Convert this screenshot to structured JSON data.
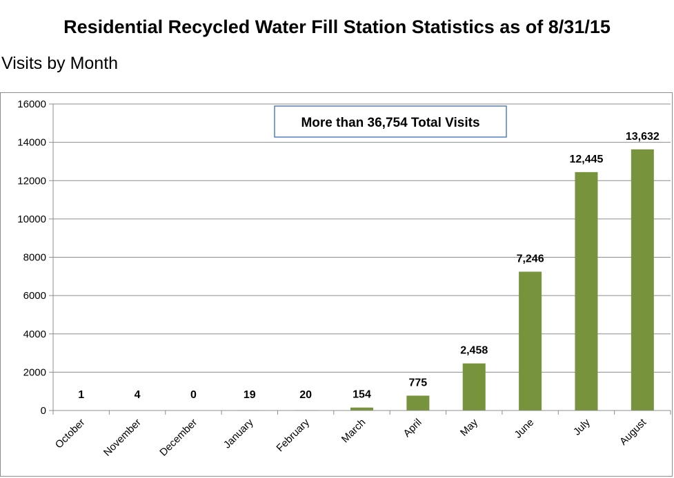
{
  "chart_data": {
    "type": "bar",
    "title": "Residential Recycled Water Fill Station Statistics as of 8/31/15",
    "subtitle": "Visits by Month",
    "categories": [
      "October",
      "November",
      "December",
      "January",
      "February",
      "March",
      "April",
      "May",
      "June",
      "July",
      "August"
    ],
    "values": [
      1,
      4,
      0,
      19,
      20,
      154,
      775,
      2458,
      7246,
      12445,
      13632
    ],
    "data_labels": [
      "1",
      "4",
      "0",
      "19",
      "20",
      "154",
      "775",
      "2,458",
      "7,246",
      "12,445",
      "13,632"
    ],
    "yticks": [
      "0",
      "2000",
      "4000",
      "6000",
      "8000",
      "10000",
      "12000",
      "14000",
      "16000"
    ],
    "ylim": [
      0,
      16000
    ],
    "grid": true,
    "bar_color": "#77933c",
    "annotation": "More than 36,754 Total Visits",
    "annotation_border_color": "#4f81bd"
  }
}
